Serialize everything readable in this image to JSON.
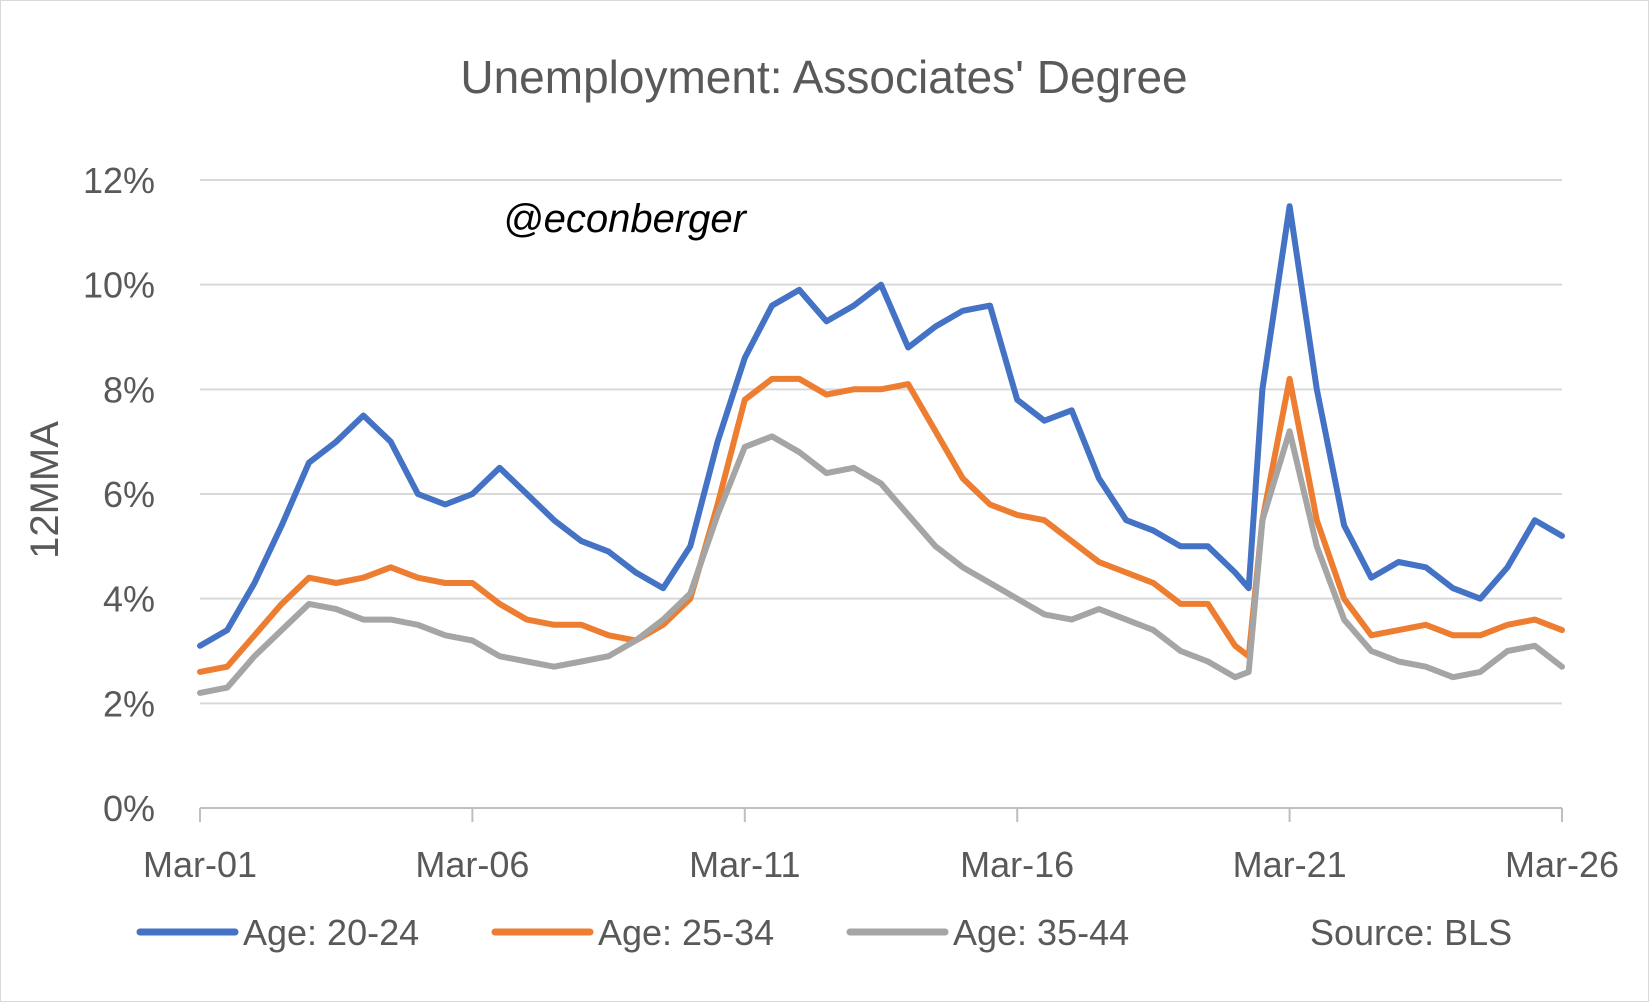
{
  "chart_data": {
    "type": "line",
    "title": "Unemployment: Associates' Degree",
    "ylabel": "12MMA",
    "xlabel": "",
    "x_ticks": [
      "Mar-01",
      "Mar-06",
      "Mar-11",
      "Mar-16",
      "Mar-21",
      "Mar-26"
    ],
    "y_ticks": [
      "0%",
      "2%",
      "4%",
      "6%",
      "8%",
      "10%",
      "12%"
    ],
    "ylim": [
      0,
      12
    ],
    "xlim": [
      "2001-03",
      "2026-03"
    ],
    "grid": true,
    "legend_position": "bottom",
    "annotation": "@econberger",
    "source": "Source: BLS",
    "series": [
      {
        "name": "Age: 20-24",
        "color": "#4472C4",
        "points": [
          [
            "2001-03",
            3.1
          ],
          [
            "2001-09",
            3.4
          ],
          [
            "2002-03",
            4.3
          ],
          [
            "2002-09",
            5.4
          ],
          [
            "2003-03",
            6.6
          ],
          [
            "2003-09",
            7.0
          ],
          [
            "2004-03",
            7.5
          ],
          [
            "2004-09",
            7.0
          ],
          [
            "2005-03",
            6.0
          ],
          [
            "2005-09",
            5.8
          ],
          [
            "2006-03",
            6.0
          ],
          [
            "2006-09",
            6.5
          ],
          [
            "2007-03",
            6.0
          ],
          [
            "2007-09",
            5.5
          ],
          [
            "2008-03",
            5.1
          ],
          [
            "2008-09",
            4.9
          ],
          [
            "2009-03",
            4.5
          ],
          [
            "2009-09",
            4.2
          ],
          [
            "2010-03",
            5.0
          ],
          [
            "2010-09",
            7.0
          ],
          [
            "2011-03",
            8.6
          ],
          [
            "2011-09",
            9.6
          ],
          [
            "2012-03",
            9.9
          ],
          [
            "2012-09",
            9.3
          ],
          [
            "2013-03",
            9.6
          ],
          [
            "2013-09",
            10.0
          ],
          [
            "2014-03",
            8.8
          ],
          [
            "2014-09",
            9.2
          ],
          [
            "2015-03",
            9.5
          ],
          [
            "2015-09",
            9.6
          ],
          [
            "2016-03",
            7.8
          ],
          [
            "2016-09",
            7.4
          ],
          [
            "2017-03",
            7.6
          ],
          [
            "2017-09",
            6.3
          ],
          [
            "2018-03",
            5.5
          ],
          [
            "2018-09",
            5.3
          ],
          [
            "2019-03",
            5.0
          ],
          [
            "2019-09",
            5.0
          ],
          [
            "2020-03",
            4.5
          ],
          [
            "2020-06",
            4.2
          ],
          [
            "2020-09",
            8.0
          ],
          [
            "2021-03",
            11.5
          ],
          [
            "2021-09",
            8.0
          ],
          [
            "2022-03",
            5.4
          ],
          [
            "2022-09",
            4.4
          ],
          [
            "2023-03",
            4.7
          ],
          [
            "2023-09",
            4.6
          ],
          [
            "2024-03",
            4.2
          ],
          [
            "2024-09",
            4.0
          ],
          [
            "2025-03",
            4.6
          ],
          [
            "2025-09",
            5.5
          ],
          [
            "2026-03",
            5.2
          ]
        ]
      },
      {
        "name": "Age: 25-34",
        "color": "#ED7D31",
        "points": [
          [
            "2001-03",
            2.6
          ],
          [
            "2001-09",
            2.7
          ],
          [
            "2002-03",
            3.3
          ],
          [
            "2002-09",
            3.9
          ],
          [
            "2003-03",
            4.4
          ],
          [
            "2003-09",
            4.3
          ],
          [
            "2004-03",
            4.4
          ],
          [
            "2004-09",
            4.6
          ],
          [
            "2005-03",
            4.4
          ],
          [
            "2005-09",
            4.3
          ],
          [
            "2006-03",
            4.3
          ],
          [
            "2006-09",
            3.9
          ],
          [
            "2007-03",
            3.6
          ],
          [
            "2007-09",
            3.5
          ],
          [
            "2008-03",
            3.5
          ],
          [
            "2008-09",
            3.3
          ],
          [
            "2009-03",
            3.2
          ],
          [
            "2009-09",
            3.5
          ],
          [
            "2010-03",
            4.0
          ],
          [
            "2010-09",
            5.8
          ],
          [
            "2011-03",
            7.8
          ],
          [
            "2011-09",
            8.2
          ],
          [
            "2012-03",
            8.2
          ],
          [
            "2012-09",
            7.9
          ],
          [
            "2013-03",
            8.0
          ],
          [
            "2013-09",
            8.0
          ],
          [
            "2014-03",
            8.1
          ],
          [
            "2014-09",
            7.2
          ],
          [
            "2015-03",
            6.3
          ],
          [
            "2015-09",
            5.8
          ],
          [
            "2016-03",
            5.6
          ],
          [
            "2016-09",
            5.5
          ],
          [
            "2017-03",
            5.1
          ],
          [
            "2017-09",
            4.7
          ],
          [
            "2018-03",
            4.5
          ],
          [
            "2018-09",
            4.3
          ],
          [
            "2019-03",
            3.9
          ],
          [
            "2019-09",
            3.9
          ],
          [
            "2020-03",
            3.1
          ],
          [
            "2020-06",
            2.9
          ],
          [
            "2020-09",
            5.5
          ],
          [
            "2021-03",
            8.2
          ],
          [
            "2021-09",
            5.5
          ],
          [
            "2022-03",
            4.0
          ],
          [
            "2022-09",
            3.3
          ],
          [
            "2023-03",
            3.4
          ],
          [
            "2023-09",
            3.5
          ],
          [
            "2024-03",
            3.3
          ],
          [
            "2024-09",
            3.3
          ],
          [
            "2025-03",
            3.5
          ],
          [
            "2025-09",
            3.6
          ],
          [
            "2026-03",
            3.4
          ]
        ]
      },
      {
        "name": "Age: 35-44",
        "color": "#A5A5A5",
        "points": [
          [
            "2001-03",
            2.2
          ],
          [
            "2001-09",
            2.3
          ],
          [
            "2002-03",
            2.9
          ],
          [
            "2002-09",
            3.4
          ],
          [
            "2003-03",
            3.9
          ],
          [
            "2003-09",
            3.8
          ],
          [
            "2004-03",
            3.6
          ],
          [
            "2004-09",
            3.6
          ],
          [
            "2005-03",
            3.5
          ],
          [
            "2005-09",
            3.3
          ],
          [
            "2006-03",
            3.2
          ],
          [
            "2006-09",
            2.9
          ],
          [
            "2007-03",
            2.8
          ],
          [
            "2007-09",
            2.7
          ],
          [
            "2008-03",
            2.8
          ],
          [
            "2008-09",
            2.9
          ],
          [
            "2009-03",
            3.2
          ],
          [
            "2009-09",
            3.6
          ],
          [
            "2010-03",
            4.1
          ],
          [
            "2010-09",
            5.6
          ],
          [
            "2011-03",
            6.9
          ],
          [
            "2011-09",
            7.1
          ],
          [
            "2012-03",
            6.8
          ],
          [
            "2012-09",
            6.4
          ],
          [
            "2013-03",
            6.5
          ],
          [
            "2013-09",
            6.2
          ],
          [
            "2014-03",
            5.6
          ],
          [
            "2014-09",
            5.0
          ],
          [
            "2015-03",
            4.6
          ],
          [
            "2015-09",
            4.3
          ],
          [
            "2016-03",
            4.0
          ],
          [
            "2016-09",
            3.7
          ],
          [
            "2017-03",
            3.6
          ],
          [
            "2017-09",
            3.8
          ],
          [
            "2018-03",
            3.6
          ],
          [
            "2018-09",
            3.4
          ],
          [
            "2019-03",
            3.0
          ],
          [
            "2019-09",
            2.8
          ],
          [
            "2020-03",
            2.5
          ],
          [
            "2020-06",
            2.6
          ],
          [
            "2020-09",
            5.5
          ],
          [
            "2021-03",
            7.2
          ],
          [
            "2021-09",
            5.0
          ],
          [
            "2022-03",
            3.6
          ],
          [
            "2022-09",
            3.0
          ],
          [
            "2023-03",
            2.8
          ],
          [
            "2023-09",
            2.7
          ],
          [
            "2024-03",
            2.5
          ],
          [
            "2024-09",
            2.6
          ],
          [
            "2025-03",
            3.0
          ],
          [
            "2025-09",
            3.1
          ],
          [
            "2026-03",
            2.7
          ]
        ]
      }
    ]
  }
}
